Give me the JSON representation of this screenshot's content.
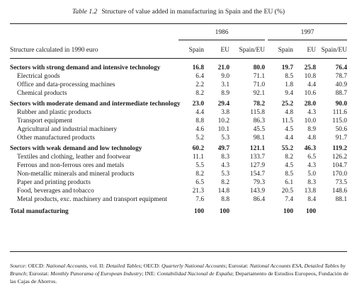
{
  "caption": {
    "number": "Table 1.2",
    "title": "Structure of value added in manufacturing in Spain and the EU (%)"
  },
  "header": {
    "structure_label": "Structure calculated in 1990 euro",
    "years": [
      "1986",
      "1997"
    ],
    "columns": [
      "Spain",
      "EU",
      "Spain/EU",
      "Spain",
      "EU",
      "Spain/EU"
    ]
  },
  "rows": [
    {
      "label": "Sectors with strong demand and intensive technology",
      "type": "bold",
      "values": [
        "16.8",
        "21.0",
        "80.0",
        "19.7",
        "25.8",
        "76.4"
      ]
    },
    {
      "label": "Electrical goods",
      "type": "sub",
      "values": [
        "6.4",
        "9.0",
        "71.1",
        "8.5",
        "10.8",
        "78.7"
      ]
    },
    {
      "label": "Office and data-processing machines",
      "type": "sub",
      "values": [
        "2.2",
        "3.1",
        "71.0",
        "1.8",
        "4.4",
        "40.9"
      ]
    },
    {
      "label": "Chemical products",
      "type": "sub",
      "values": [
        "8.2",
        "8.9",
        "92.1",
        "9.4",
        "10.6",
        "88.7"
      ]
    },
    {
      "label": "Sectors with moderate demand and intermediate technology",
      "type": "bold",
      "values": [
        "23.0",
        "29.4",
        "78.2",
        "25.2",
        "28.0",
        "90.0"
      ]
    },
    {
      "label": "Rubber and plastic products",
      "type": "sub",
      "values": [
        "4.4",
        "3.8",
        "115.8",
        "4.8",
        "4.3",
        "111.6"
      ]
    },
    {
      "label": "Transport equipment",
      "type": "sub",
      "values": [
        "8.8",
        "10.2",
        "86.3",
        "11.5",
        "10.0",
        "115.0"
      ]
    },
    {
      "label": "Agricultural and industrial machinery",
      "type": "sub",
      "values": [
        "4.6",
        "10.1",
        "45.5",
        "4.5",
        "8.9",
        "50.6"
      ]
    },
    {
      "label": "Other manufactured products",
      "type": "sub",
      "values": [
        "5.2",
        "5.3",
        "98.1",
        "4.4",
        "4.8",
        "91.7"
      ]
    },
    {
      "label": "Sectors with weak demand and low technology",
      "type": "bold",
      "values": [
        "60.2",
        "49.7",
        "121.1",
        "55.2",
        "46.3",
        "119.2"
      ]
    },
    {
      "label": "Textiles and clothing, leather and footwear",
      "type": "sub",
      "values": [
        "11.1",
        "8.3",
        "133.7",
        "8.2",
        "6.5",
        "126.2"
      ]
    },
    {
      "label": "Ferrous and non-ferrous ores and metals",
      "type": "sub",
      "values": [
        "5.5",
        "4.3",
        "127.9",
        "4.5",
        "4.3",
        "104.7"
      ]
    },
    {
      "label": "Non-metallic minerals and mineral products",
      "type": "sub",
      "values": [
        "8.2",
        "5.3",
        "154.7",
        "8.5",
        "5.0",
        "170.0"
      ]
    },
    {
      "label": "Paper and printing products",
      "type": "sub",
      "values": [
        "6.5",
        "8.2",
        "79.3",
        "6.1",
        "8.3",
        "73.5"
      ]
    },
    {
      "label": "Food, beverages and tobacco",
      "type": "sub",
      "values": [
        "21.3",
        "14.8",
        "143.9",
        "20.5",
        "13.8",
        "148.6"
      ]
    },
    {
      "label": "Metal products, exc. machinery and transport equipment",
      "type": "sub",
      "values": [
        "7.6",
        "8.8",
        "86.4",
        "7.4",
        "8.4",
        "88.1"
      ]
    },
    {
      "label": "Total manufacturing",
      "type": "bold",
      "values": [
        "100",
        "100",
        "",
        "100",
        "100",
        ""
      ]
    }
  ],
  "source": {
    "label": "Source",
    "parts": [
      {
        "text": ": OECD: ",
        "italic": false
      },
      {
        "text": "National Accounts",
        "italic": true
      },
      {
        "text": ", vol. II: ",
        "italic": false
      },
      {
        "text": "Detailed Tables",
        "italic": true
      },
      {
        "text": "; OECD: ",
        "italic": false
      },
      {
        "text": "Quarterly National Accounts",
        "italic": true
      },
      {
        "text": "; Eurostat: ",
        "italic": false
      },
      {
        "text": "National Accounts ESA, Detailed Tables by Branch",
        "italic": true
      },
      {
        "text": "; Eurostat: ",
        "italic": false
      },
      {
        "text": "Monthly Panorama of European Industry",
        "italic": true
      },
      {
        "text": "; INE: ",
        "italic": false
      },
      {
        "text": "Contabilidad Nacional de España",
        "italic": true
      },
      {
        "text": "; Departamento de Estudios Europeos, Fundación de las Cajas de Ahorros.",
        "italic": false
      }
    ]
  }
}
